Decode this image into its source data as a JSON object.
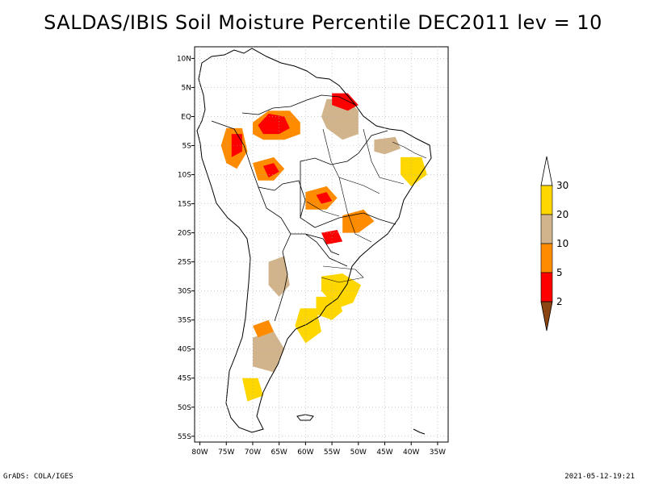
{
  "title": "SALDAS/IBIS Soil Moisture Percentile DEC2011 lev = 10",
  "footer": {
    "left": "GrADS: COLA/IGES",
    "right": "2021-05-12-19:21"
  },
  "map": {
    "lon_range": [
      -81,
      -33
    ],
    "lat_range": [
      -56,
      12
    ],
    "lon_ticks": [
      {
        "value": -80,
        "label": "80W"
      },
      {
        "value": -75,
        "label": "75W"
      },
      {
        "value": -70,
        "label": "70W"
      },
      {
        "value": -65,
        "label": "65W"
      },
      {
        "value": -60,
        "label": "60W"
      },
      {
        "value": -55,
        "label": "55W"
      },
      {
        "value": -50,
        "label": "50W"
      },
      {
        "value": -45,
        "label": "45W"
      },
      {
        "value": -40,
        "label": "40W"
      },
      {
        "value": -35,
        "label": "35W"
      }
    ],
    "lat_ticks": [
      {
        "value": 10,
        "label": "10N"
      },
      {
        "value": 5,
        "label": "5N"
      },
      {
        "value": 0,
        "label": "EQ"
      },
      {
        "value": -5,
        "label": "5S"
      },
      {
        "value": -10,
        "label": "10S"
      },
      {
        "value": -15,
        "label": "15S"
      },
      {
        "value": -20,
        "label": "20S"
      },
      {
        "value": -25,
        "label": "25S"
      },
      {
        "value": -30,
        "label": "30S"
      },
      {
        "value": -35,
        "label": "35S"
      },
      {
        "value": -40,
        "label": "40S"
      },
      {
        "value": -45,
        "label": "45S"
      },
      {
        "value": -50,
        "label": "50S"
      },
      {
        "value": -55,
        "label": "55S"
      }
    ]
  },
  "colorbar": {
    "bins": [
      {
        "color": "#ffd700",
        "upper": 30
      },
      {
        "color": "#d2b48c",
        "upper": 20
      },
      {
        "color": "#ff8c00",
        "upper": 10
      },
      {
        "color": "#ff0000",
        "upper": 5
      },
      {
        "color": "#8b4513",
        "upper": 2
      }
    ],
    "labels": [
      "30",
      "20",
      "10",
      "5",
      "2"
    ]
  },
  "colors": {
    "yellow": "#ffd700",
    "tan": "#d2b48c",
    "orange": "#ff8c00",
    "red": "#ff0000",
    "brown": "#8b4513"
  },
  "regions": [
    {
      "name": "n-amazon-west",
      "c": "orange",
      "pts": [
        [
          -70,
          -1
        ],
        [
          -67,
          1
        ],
        [
          -63,
          1
        ],
        [
          -61,
          -1
        ],
        [
          -61,
          -3
        ],
        [
          -64,
          -4
        ],
        [
          -68,
          -4
        ],
        [
          -70,
          -3
        ]
      ]
    },
    {
      "name": "n-amazon-west-red",
      "c": "red",
      "pts": [
        [
          -69,
          -1.5
        ],
        [
          -67,
          0.5
        ],
        [
          -64,
          0
        ],
        [
          -63,
          -2
        ],
        [
          -65,
          -3
        ],
        [
          -68,
          -3
        ]
      ]
    },
    {
      "name": "peru-west",
      "c": "orange",
      "pts": [
        [
          -75,
          -2
        ],
        [
          -72,
          -2
        ],
        [
          -71,
          -6
        ],
        [
          -73,
          -9
        ],
        [
          -75,
          -8
        ],
        [
          -76,
          -5
        ]
      ]
    },
    {
      "name": "peru-west-red",
      "c": "red",
      "pts": [
        [
          -74,
          -3
        ],
        [
          -72,
          -3
        ],
        [
          -72,
          -6
        ],
        [
          -74,
          -7
        ]
      ]
    },
    {
      "name": "acre",
      "c": "orange",
      "pts": [
        [
          -70,
          -8
        ],
        [
          -66,
          -7
        ],
        [
          -64,
          -9
        ],
        [
          -66,
          -11
        ],
        [
          -69,
          -11
        ]
      ]
    },
    {
      "name": "acre-red",
      "c": "red",
      "pts": [
        [
          -68,
          -8.5
        ],
        [
          -66,
          -8
        ],
        [
          -65,
          -9.5
        ],
        [
          -67,
          -10.5
        ]
      ]
    },
    {
      "name": "para-north-tan",
      "c": "tan",
      "pts": [
        [
          -56,
          3
        ],
        [
          -52,
          3
        ],
        [
          -50,
          1
        ],
        [
          -50,
          -3
        ],
        [
          -53,
          -4
        ],
        [
          -56,
          -2
        ],
        [
          -57,
          0
        ]
      ]
    },
    {
      "name": "amapa-red",
      "c": "red",
      "pts": [
        [
          -55,
          4
        ],
        [
          -52,
          4
        ],
        [
          -50,
          2
        ],
        [
          -52,
          1
        ],
        [
          -55,
          2
        ]
      ]
    },
    {
      "name": "maranhao-tan",
      "c": "tan",
      "pts": [
        [
          -47,
          -4
        ],
        [
          -43,
          -3.5
        ],
        [
          -42,
          -5.5
        ],
        [
          -45,
          -6.5
        ],
        [
          -47,
          -6
        ]
      ]
    },
    {
      "name": "mt-orange",
      "c": "orange",
      "pts": [
        [
          -60,
          -13
        ],
        [
          -56,
          -12
        ],
        [
          -54,
          -14
        ],
        [
          -56,
          -16
        ],
        [
          -60,
          -16
        ]
      ]
    },
    {
      "name": "mt-red",
      "c": "red",
      "pts": [
        [
          -58,
          -13.5
        ],
        [
          -56,
          -13
        ],
        [
          -55,
          -14.5
        ],
        [
          -57,
          -15
        ]
      ]
    },
    {
      "name": "goias-orange",
      "c": "orange",
      "pts": [
        [
          -53,
          -17
        ],
        [
          -49,
          -16
        ],
        [
          -47,
          -18
        ],
        [
          -50,
          -20
        ],
        [
          -53,
          -20
        ]
      ]
    },
    {
      "name": "ms-red",
      "c": "red",
      "pts": [
        [
          -57,
          -20
        ],
        [
          -54,
          -19.5
        ],
        [
          -53,
          -21.5
        ],
        [
          -56,
          -22
        ]
      ]
    },
    {
      "name": "rs-yellow",
      "c": "yellow",
      "pts": [
        [
          -57,
          -27.5
        ],
        [
          -53,
          -27
        ],
        [
          -49.5,
          -29
        ],
        [
          -51,
          -32
        ],
        [
          -54,
          -33
        ],
        [
          -57,
          -30
        ]
      ]
    },
    {
      "name": "uruguay-yellow",
      "c": "yellow",
      "pts": [
        [
          -58,
          -31
        ],
        [
          -54,
          -31
        ],
        [
          -53,
          -33.5
        ],
        [
          -55,
          -35
        ],
        [
          -58,
          -34
        ]
      ]
    },
    {
      "name": "arg-centre-tan",
      "c": "tan",
      "pts": [
        [
          -67,
          -25
        ],
        [
          -64,
          -24
        ],
        [
          -63,
          -29
        ],
        [
          -65,
          -31
        ],
        [
          -67,
          -29
        ]
      ]
    },
    {
      "name": "arg-east-yellow",
      "c": "yellow",
      "pts": [
        [
          -61,
          -33
        ],
        [
          -58,
          -33
        ],
        [
          -57,
          -37
        ],
        [
          -60,
          -39
        ],
        [
          -62,
          -36
        ]
      ]
    },
    {
      "name": "patagonia-tan",
      "c": "tan",
      "pts": [
        [
          -70,
          -38
        ],
        [
          -66,
          -37
        ],
        [
          -64,
          -40
        ],
        [
          -66,
          -44
        ],
        [
          -70,
          -43
        ]
      ]
    },
    {
      "name": "patagonia-orange",
      "c": "orange",
      "pts": [
        [
          -70,
          -36
        ],
        [
          -67,
          -35
        ],
        [
          -66,
          -37
        ],
        [
          -69,
          -38
        ]
      ]
    },
    {
      "name": "sw-yellow",
      "c": "yellow",
      "pts": [
        [
          -72,
          -45
        ],
        [
          -69,
          -45
        ],
        [
          -68,
          -48
        ],
        [
          -71,
          -49
        ]
      ]
    },
    {
      "name": "nordeste-yellow",
      "c": "yellow",
      "pts": [
        [
          -42,
          -7
        ],
        [
          -38,
          -7
        ],
        [
          -37,
          -10
        ],
        [
          -40,
          -12
        ],
        [
          -42,
          -10
        ]
      ]
    }
  ]
}
